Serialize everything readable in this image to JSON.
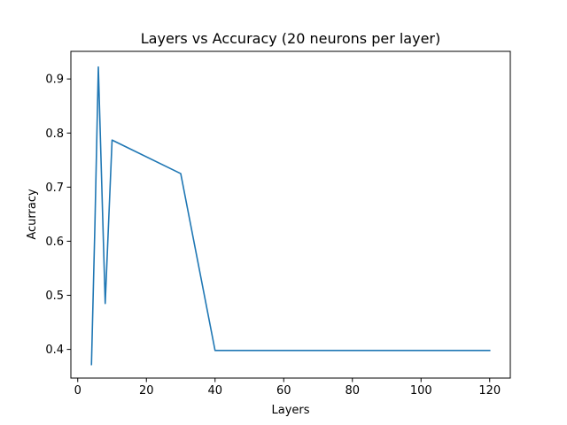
{
  "chart_data": {
    "type": "line",
    "title": "Layers vs Accuracy (20 neurons per layer)",
    "xlabel": "Layers",
    "ylabel": "Acurracy",
    "xlim": [
      -2,
      126
    ],
    "ylim": [
      0.347,
      0.951
    ],
    "xticks": [
      0,
      20,
      40,
      60,
      80,
      100,
      120
    ],
    "yticks": [
      0.4,
      0.5,
      0.6,
      0.7,
      0.8,
      0.9
    ],
    "xtick_labels": [
      "0",
      "20",
      "40",
      "60",
      "80",
      "100",
      "120"
    ],
    "ytick_labels": [
      "0.4",
      "0.5",
      "0.6",
      "0.7",
      "0.8",
      "0.9"
    ],
    "grid": false,
    "legend": "none",
    "series": [
      {
        "color": "#1f77b4",
        "x": [
          4,
          5,
          6,
          8,
          10,
          30,
          40,
          60,
          80,
          100,
          120
        ],
        "values": [
          0.372,
          0.63,
          0.922,
          0.485,
          0.787,
          0.725,
          0.398,
          0.398,
          0.398,
          0.398,
          0.398
        ]
      }
    ]
  }
}
